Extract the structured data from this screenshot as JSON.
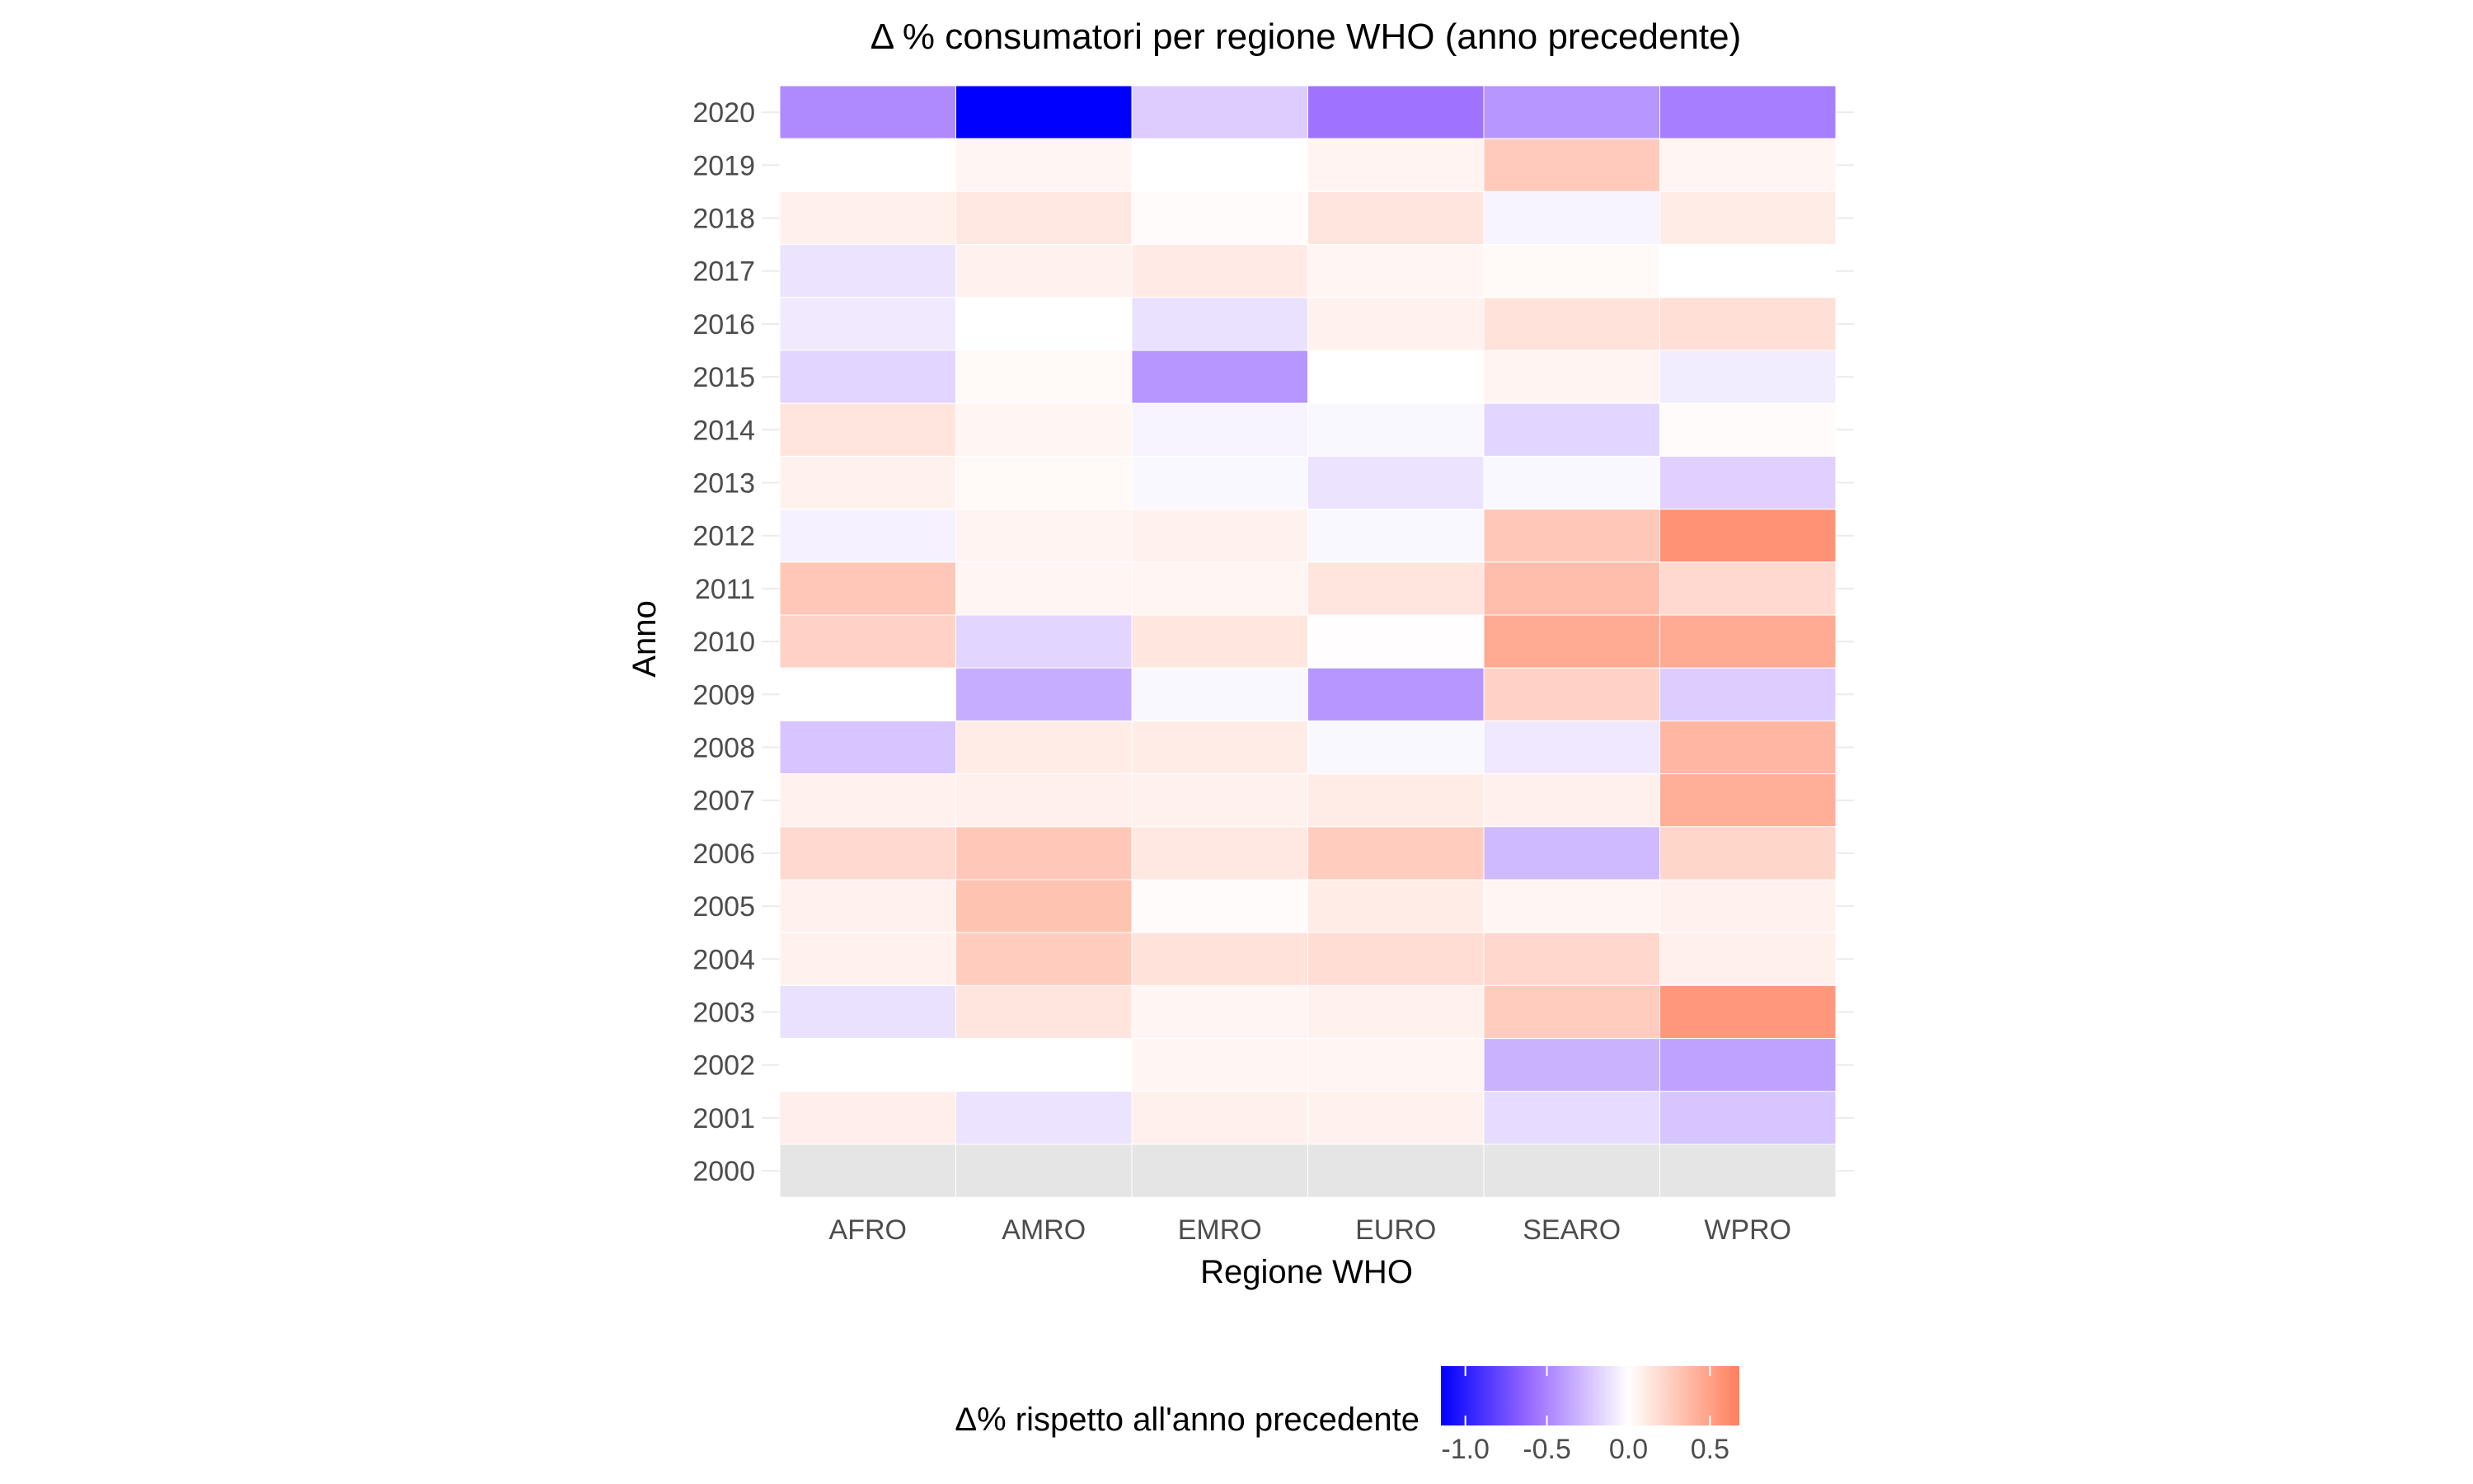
{
  "chart_data": {
    "type": "heatmap",
    "title": "Δ % consumatori per regione WHO (anno precedente)",
    "xlabel": "Regione WHO",
    "ylabel": "Anno",
    "categories": [
      "AFRO",
      "AMRO",
      "EMRO",
      "EURO",
      "SEARO",
      "WPRO"
    ],
    "years": [
      "2020",
      "2019",
      "2018",
      "2017",
      "2016",
      "2015",
      "2014",
      "2013",
      "2012",
      "2011",
      "2010",
      "2009",
      "2008",
      "2007",
      "2006",
      "2005",
      "2004",
      "2003",
      "2002",
      "2001",
      "2000"
    ],
    "values": [
      [
        -0.5,
        -1.15,
        -0.22,
        -0.6,
        -0.45,
        -0.55
      ],
      [
        0.0,
        0.05,
        0.0,
        0.06,
        0.28,
        0.05
      ],
      [
        0.08,
        0.12,
        0.02,
        0.14,
        -0.05,
        0.1
      ],
      [
        -0.12,
        0.07,
        0.11,
        0.05,
        0.03,
        0.0
      ],
      [
        -0.09,
        0.0,
        -0.13,
        0.07,
        0.15,
        0.17
      ],
      [
        -0.18,
        0.03,
        -0.45,
        0.0,
        0.06,
        -0.08
      ],
      [
        0.14,
        0.05,
        -0.05,
        -0.03,
        -0.18,
        0.02
      ],
      [
        0.07,
        0.03,
        -0.03,
        -0.12,
        -0.03,
        -0.2
      ],
      [
        -0.06,
        0.06,
        0.07,
        -0.03,
        0.3,
        0.58
      ],
      [
        0.3,
        0.05,
        0.05,
        0.14,
        0.35,
        0.2
      ],
      [
        0.24,
        -0.18,
        0.13,
        0.01,
        0.45,
        0.45
      ],
      [
        0.0,
        -0.35,
        -0.03,
        -0.45,
        0.24,
        -0.22
      ],
      [
        -0.25,
        0.1,
        0.1,
        -0.03,
        -0.1,
        0.38
      ],
      [
        0.07,
        0.08,
        0.07,
        0.1,
        0.08,
        0.43
      ],
      [
        0.2,
        0.3,
        0.12,
        0.27,
        -0.3,
        0.22
      ],
      [
        0.07,
        0.32,
        0.02,
        0.1,
        0.05,
        0.07
      ],
      [
        0.07,
        0.27,
        0.15,
        0.18,
        0.21,
        0.08
      ],
      [
        -0.13,
        0.14,
        0.05,
        0.07,
        0.27,
        0.55
      ],
      [
        0.0,
        0.0,
        0.05,
        0.05,
        -0.33,
        -0.4
      ],
      [
        0.09,
        -0.12,
        0.08,
        0.07,
        -0.15,
        -0.25
      ],
      [
        null,
        null,
        null,
        null,
        null,
        null
      ]
    ],
    "na_color": "#e5e5e5",
    "colors": {
      "low": "#0000ff",
      "mid": "#ffffff",
      "high": "#ff7f5c"
    },
    "scale_limits": [
      -1.15,
      0.68
    ],
    "legend": {
      "title": "Δ% rispetto all'anno precedente",
      "position": "bottom",
      "ticks": [
        {
          "value": -1.0,
          "label": "-1.0"
        },
        {
          "value": -0.5,
          "label": "-0.5"
        },
        {
          "value": 0.0,
          "label": "0.0"
        },
        {
          "value": 0.5,
          "label": "0.5"
        }
      ]
    },
    "grid": true
  }
}
